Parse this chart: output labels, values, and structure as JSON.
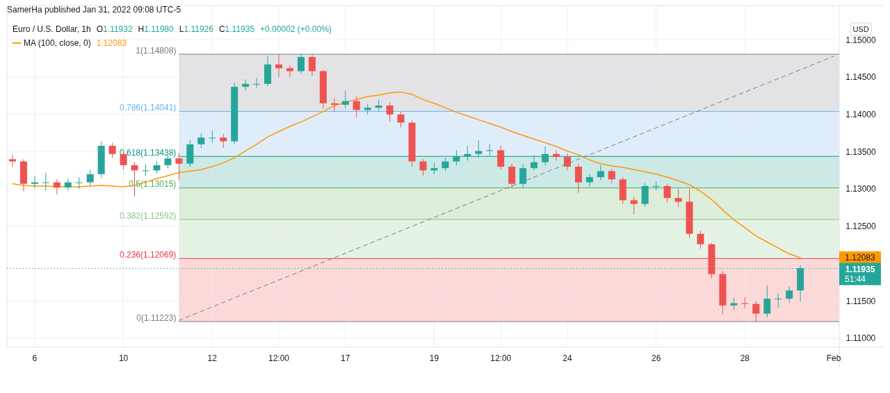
{
  "chart_data": {
    "type": "candlestick",
    "title": "Euro / U.S. Dollar, 1h",
    "ylabel": "USD",
    "annotations": [
      "SamerHa published Jan 31, 2022 09:08 UTC-5",
      "O1.11932",
      "H1.11980",
      "L1.11926",
      "C1.11935",
      "+0.00002 (+0.00%)",
      "51:44",
      "1.12083"
    ],
    "categories": [
      null,
      null,
      "6",
      null,
      null,
      null,
      null,
      null,
      null,
      null,
      "10",
      null,
      null,
      null,
      null,
      null,
      null,
      null,
      "12",
      null,
      null,
      null,
      null,
      null,
      "12:00",
      null,
      null,
      null,
      null,
      null,
      "17",
      null,
      null,
      null,
      null,
      null,
      null,
      null,
      "19",
      null,
      null,
      null,
      null,
      null,
      "12:00",
      null,
      null,
      null,
      null,
      null,
      "24",
      null,
      null,
      null,
      null,
      null,
      null,
      null,
      "26",
      null,
      null,
      null,
      null,
      null,
      null,
      null,
      "28",
      null,
      null,
      null,
      null,
      null,
      null,
      null,
      "Feb"
    ],
    "ohlc": [
      [
        1.134,
        1.1346,
        1.133,
        1.1337
      ],
      [
        1.1337,
        1.134,
        1.1297,
        1.1307
      ],
      [
        1.1307,
        1.1318,
        1.1301,
        1.1309
      ],
      [
        1.1309,
        1.1322,
        1.1298,
        1.1309
      ],
      [
        1.1309,
        1.1313,
        1.1293,
        1.1302
      ],
      [
        1.1302,
        1.1314,
        1.1298,
        1.1309
      ],
      [
        1.1309,
        1.1316,
        1.13,
        1.1309
      ],
      [
        1.1309,
        1.1326,
        1.1305,
        1.132
      ],
      [
        1.132,
        1.1364,
        1.1315,
        1.1358
      ],
      [
        1.1358,
        1.1362,
        1.1342,
        1.1347
      ],
      [
        1.1347,
        1.135,
        1.1326,
        1.1332
      ],
      [
        1.1332,
        1.1336,
        1.129,
        1.1325
      ],
      [
        1.1325,
        1.1333,
        1.1318,
        1.1325
      ],
      [
        1.1325,
        1.1337,
        1.1321,
        1.1332
      ],
      [
        1.1332,
        1.1345,
        1.1328,
        1.1341
      ],
      [
        1.1341,
        1.1348,
        1.1312,
        1.1334
      ],
      [
        1.1334,
        1.1366,
        1.133,
        1.136
      ],
      [
        1.136,
        1.1375,
        1.1355,
        1.1369
      ],
      [
        1.1369,
        1.1378,
        1.1362,
        1.1369
      ],
      [
        1.1369,
        1.1374,
        1.1355,
        1.1364
      ],
      [
        1.1364,
        1.1443,
        1.136,
        1.1437
      ],
      [
        1.1437,
        1.1447,
        1.1432,
        1.1441
      ],
      [
        1.1441,
        1.1449,
        1.1436,
        1.1441
      ],
      [
        1.1441,
        1.1478,
        1.1438,
        1.1467
      ],
      [
        1.1467,
        1.1481,
        1.145,
        1.1462
      ],
      [
        1.1462,
        1.1466,
        1.145,
        1.1458
      ],
      [
        1.1458,
        1.1481,
        1.1455,
        1.1477
      ],
      [
        1.1477,
        1.148,
        1.1452,
        1.1458
      ],
      [
        1.1458,
        1.146,
        1.1408,
        1.1415
      ],
      [
        1.1415,
        1.1422,
        1.1404,
        1.1413
      ],
      [
        1.1413,
        1.1432,
        1.1408,
        1.1418
      ],
      [
        1.1418,
        1.1424,
        1.1396,
        1.1406
      ],
      [
        1.1406,
        1.1414,
        1.14,
        1.1409
      ],
      [
        1.1409,
        1.142,
        1.1405,
        1.1412
      ],
      [
        1.1412,
        1.1416,
        1.139,
        1.14
      ],
      [
        1.14,
        1.1404,
        1.1383,
        1.1389
      ],
      [
        1.1389,
        1.1392,
        1.133,
        1.1337
      ],
      [
        1.1337,
        1.134,
        1.1318,
        1.1325
      ],
      [
        1.1325,
        1.1335,
        1.132,
        1.1328
      ],
      [
        1.1328,
        1.1342,
        1.1324,
        1.1337
      ],
      [
        1.1337,
        1.1352,
        1.1332,
        1.1344
      ],
      [
        1.1344,
        1.1358,
        1.1338,
        1.1347
      ],
      [
        1.1347,
        1.1365,
        1.1342,
        1.1351
      ],
      [
        1.1351,
        1.136,
        1.1345,
        1.1352
      ],
      [
        1.1352,
        1.1358,
        1.1326,
        1.133
      ],
      [
        1.133,
        1.1334,
        1.1301,
        1.1307
      ],
      [
        1.1307,
        1.1333,
        1.1302,
        1.1328
      ],
      [
        1.1328,
        1.1345,
        1.1325,
        1.1336
      ],
      [
        1.1336,
        1.1357,
        1.1332,
        1.1347
      ],
      [
        1.1347,
        1.1352,
        1.1338,
        1.1343
      ],
      [
        1.1343,
        1.1348,
        1.1325,
        1.133
      ],
      [
        1.133,
        1.1334,
        1.1295,
        1.1309
      ],
      [
        1.1309,
        1.132,
        1.1303,
        1.1316
      ],
      [
        1.1316,
        1.1332,
        1.1312,
        1.1324
      ],
      [
        1.1324,
        1.1327,
        1.1308,
        1.1313
      ],
      [
        1.1313,
        1.1316,
        1.128,
        1.1285
      ],
      [
        1.1285,
        1.129,
        1.1266,
        1.128
      ],
      [
        1.128,
        1.1308,
        1.1276,
        1.1304
      ],
      [
        1.1304,
        1.131,
        1.1298,
        1.1304
      ],
      [
        1.1304,
        1.1307,
        1.1282,
        1.1288
      ],
      [
        1.1288,
        1.13,
        1.1276,
        1.1283
      ],
      [
        1.1283,
        1.13,
        1.1234,
        1.124
      ],
      [
        1.124,
        1.1244,
        1.122,
        1.1226
      ],
      [
        1.1226,
        1.1228,
        1.118,
        1.1186
      ],
      [
        1.1186,
        1.119,
        1.1132,
        1.1144
      ],
      [
        1.1144,
        1.1154,
        1.1138,
        1.1147
      ],
      [
        1.1147,
        1.1155,
        1.114,
        1.1146
      ],
      [
        1.1146,
        1.115,
        1.1122,
        1.1133
      ],
      [
        1.1133,
        1.1171,
        1.1128,
        1.1153
      ],
      [
        1.1153,
        1.116,
        1.1141,
        1.1153
      ],
      [
        1.1153,
        1.117,
        1.1148,
        1.1164
      ],
      [
        1.1164,
        1.1198,
        1.1149,
        1.1194
      ],
      null,
      null,
      null
    ],
    "series": [
      {
        "name": "MA (100, close, 0)",
        "type": "line",
        "color": "#ff9800",
        "values": [
          1.1307,
          1.1305,
          1.1304,
          1.1304,
          1.1303,
          1.1303,
          1.1303,
          1.1304,
          1.1305,
          1.1304,
          1.1303,
          1.1305,
          1.1309,
          1.1314,
          1.1318,
          1.1322,
          1.1324,
          1.1326,
          1.133,
          1.1335,
          1.1342,
          1.1351,
          1.136,
          1.137,
          1.1377,
          1.1384,
          1.139,
          1.1397,
          1.1404,
          1.1412,
          1.1416,
          1.142,
          1.1424,
          1.1426,
          1.1429,
          1.143,
          1.1427,
          1.142,
          1.1415,
          1.1409,
          1.1403,
          1.1398,
          1.1393,
          1.1388,
          1.1383,
          1.1377,
          1.1372,
          1.1367,
          1.1362,
          1.1357,
          1.1351,
          1.1346,
          1.1339,
          1.1334,
          1.1331,
          1.1329,
          1.1326,
          1.1323,
          1.132,
          1.1316,
          1.1311,
          1.1306,
          1.1297,
          1.1286,
          1.1272,
          1.1259,
          1.1248,
          1.1237,
          1.1229,
          1.1221,
          1.1213,
          1.1208,
          null,
          null,
          null
        ]
      },
      {
        "type": "line",
        "color": "#787b86",
        "line_style": "dashed",
        "values": [
          null,
          null,
          null,
          null,
          null,
          null,
          null,
          null,
          null,
          null,
          null,
          null,
          null,
          null,
          null,
          1.1124,
          null,
          null,
          null,
          null,
          null,
          null,
          null,
          null,
          null,
          null,
          null,
          null,
          null,
          null,
          null,
          null,
          null,
          null,
          null,
          null,
          null,
          null,
          null,
          null,
          null,
          null,
          null,
          null,
          null,
          null,
          null,
          null,
          null,
          null,
          null,
          null,
          null,
          null,
          null,
          null,
          null,
          null,
          null,
          null,
          null,
          null,
          null,
          null,
          null,
          null,
          null,
          null,
          null,
          null,
          null,
          null,
          null,
          null,
          1.1478
        ]
      }
    ],
    "bands": [
      {
        "axis": "y",
        "from": 1.14041,
        "to": 1.14808,
        "color": "#e3e3e6"
      },
      {
        "axis": "y",
        "from": 1.13438,
        "to": 1.14041,
        "color": "#dfedfb"
      },
      {
        "axis": "y",
        "from": 1.13015,
        "to": 1.13438,
        "color": "#cce9e6"
      },
      {
        "axis": "y",
        "from": 1.12592,
        "to": 1.13015,
        "color": "#dcedd9"
      },
      {
        "axis": "y",
        "from": 1.12069,
        "to": 1.12592,
        "color": "#e5f3e5"
      },
      {
        "axis": "y",
        "from": 1.11223,
        "to": 1.12069,
        "color": "#fcd9d9"
      }
    ],
    "ref_lines": [
      {
        "axis": "y",
        "value": 1.14808,
        "label": "1(1.14808)",
        "color": "#787b86"
      },
      {
        "axis": "y",
        "value": 1.14041,
        "label": "0.786(1.14041)",
        "color": "#64b5f6"
      },
      {
        "axis": "y",
        "value": 1.13438,
        "label": "0.618(1.13438)",
        "color": "#089981"
      },
      {
        "axis": "y",
        "value": 1.13015,
        "label": "0.5(1.13015)",
        "color": "#4caf50"
      },
      {
        "axis": "y",
        "value": 1.12592,
        "label": "0.382(1.12592)",
        "color": "#81c784"
      },
      {
        "axis": "y",
        "value": 1.12069,
        "label": "0.236(1.12069)",
        "color": "#f23645"
      },
      {
        "axis": "y",
        "value": 1.11223,
        "label": "0(1.11223)",
        "color": "#787b86"
      },
      {
        "axis": "y",
        "value": 1.11935,
        "label": "1.11935",
        "color": "#26a69a",
        "line_style": "dotted"
      }
    ],
    "ylim": [
      1.1088,
      1.1546
    ],
    "yticks": [
      {
        "value": 1.11,
        "label": "1.11000"
      },
      {
        "value": 1.115,
        "label": "1.11500"
      },
      {
        "value": 1.125,
        "label": "1.12500"
      },
      {
        "value": 1.13,
        "label": "1.13000"
      },
      {
        "value": 1.135,
        "label": "1.13500"
      },
      {
        "value": 1.14,
        "label": "1.14000"
      },
      {
        "value": 1.145,
        "label": "1.14500"
      },
      {
        "value": 1.15,
        "label": "1.15000"
      }
    ],
    "grid": true,
    "legend": "top left"
  }
}
